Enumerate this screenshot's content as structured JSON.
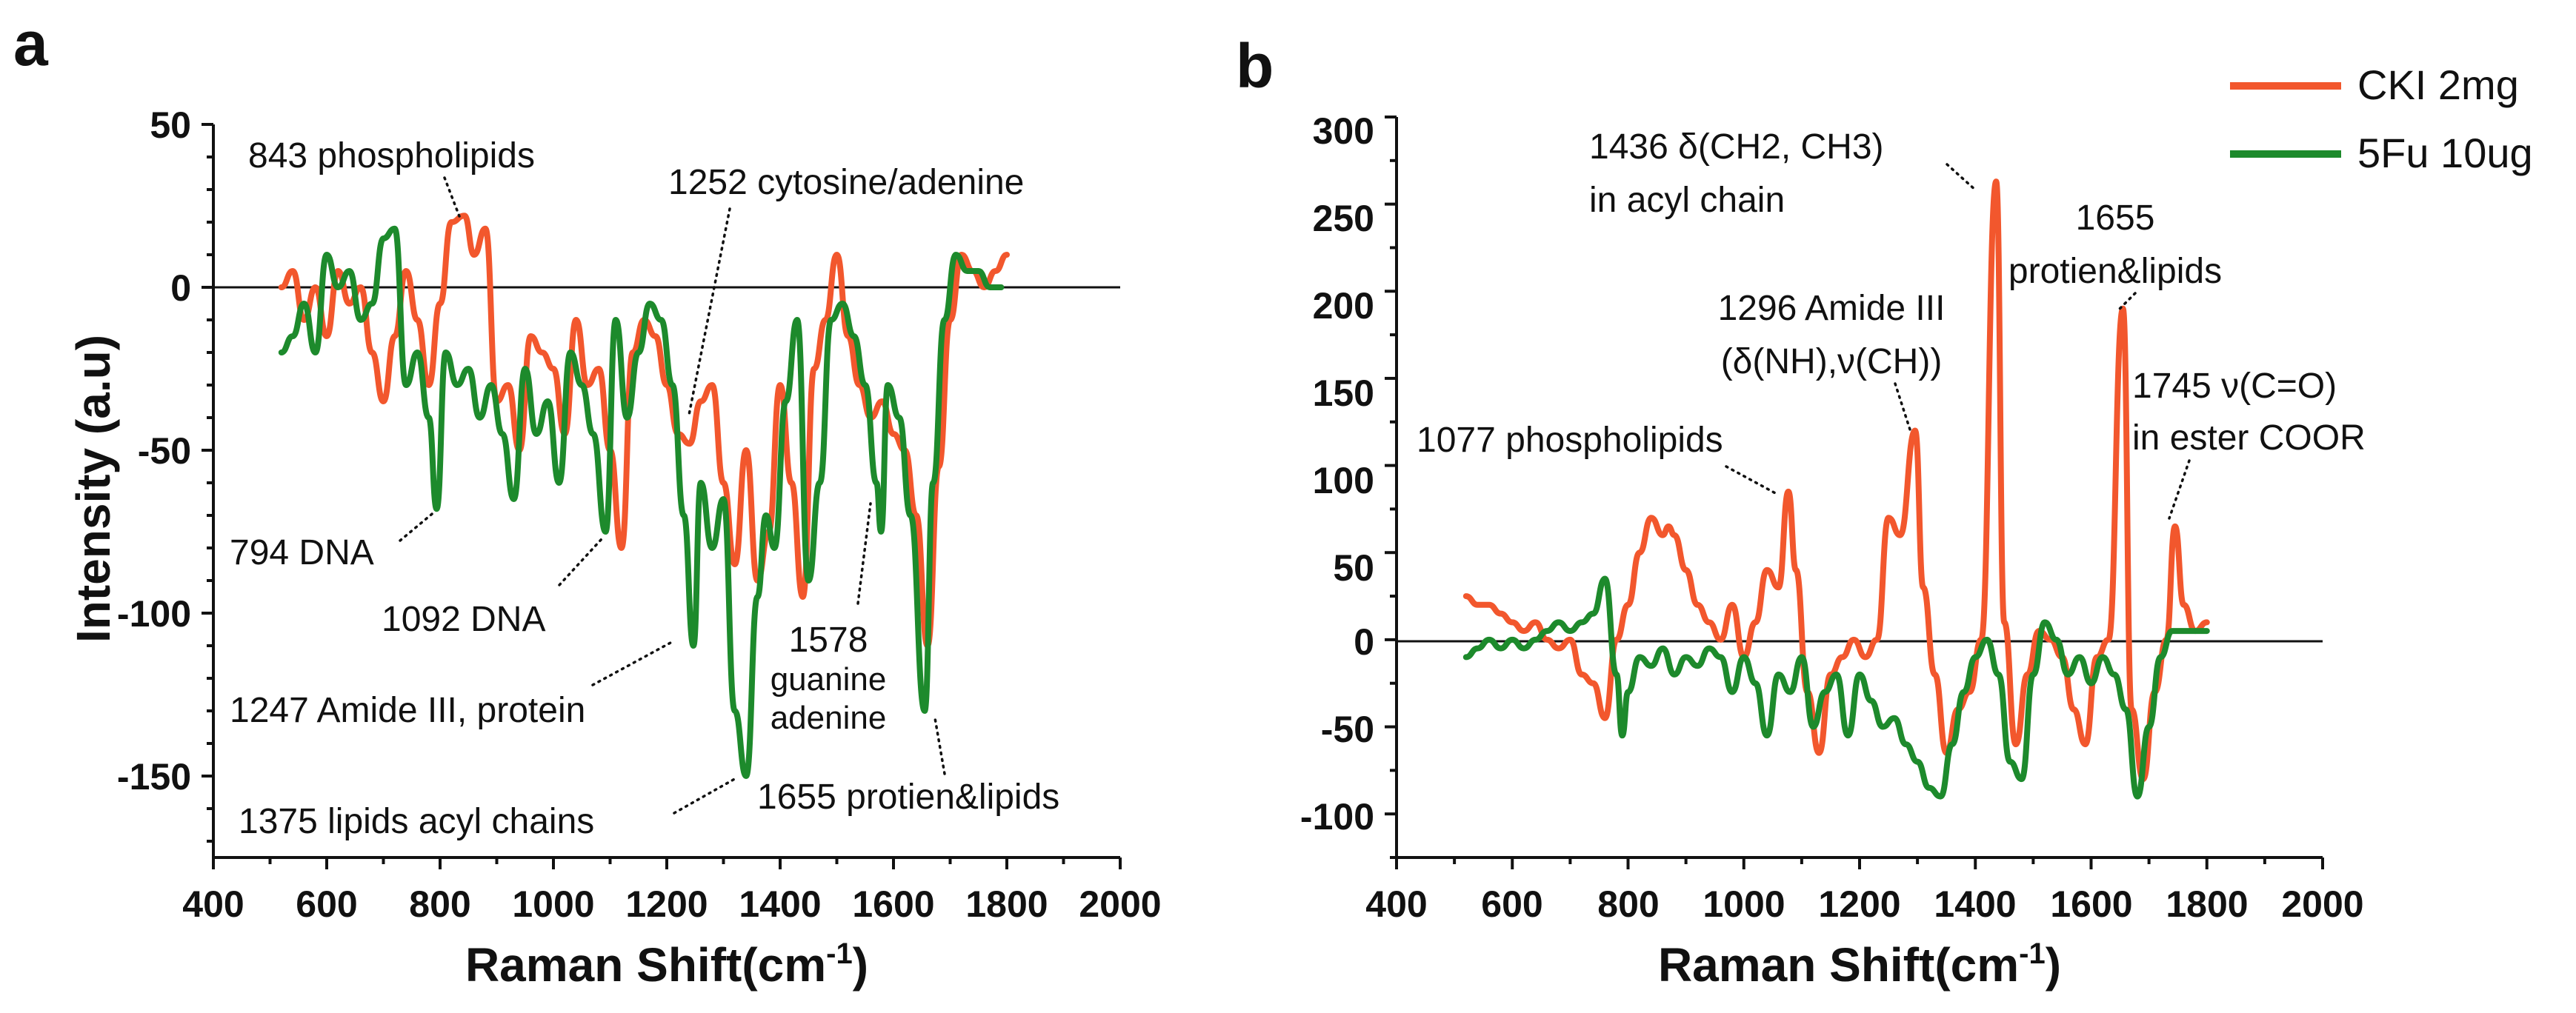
{
  "colors": {
    "cki": "#F2572D",
    "fu": "#1D8A2C",
    "axis": "#111111"
  },
  "chart_data": [
    {
      "type": "line",
      "panel_label": "a",
      "xlabel": "Raman Shift(cm",
      "xlabel_sup": "-1",
      "xlabel_close": ")",
      "ylabel": "Intensity (a.u)",
      "xlim": [
        400,
        2000
      ],
      "ylim": [
        -175,
        50
      ],
      "xticks": [
        400,
        600,
        800,
        1000,
        1200,
        1400,
        1600,
        1800,
        2000
      ],
      "yticks": [
        50,
        0,
        -50,
        -100,
        -150
      ],
      "ytick_labels": [
        "50",
        "0",
        "-50",
        "-100",
        "-150"
      ],
      "zero_line": true,
      "series": [
        {
          "name": "CKI 2mg",
          "color_key": "cki",
          "x": [
            520,
            540,
            560,
            580,
            600,
            620,
            640,
            660,
            680,
            700,
            720,
            740,
            760,
            780,
            800,
            820,
            843,
            860,
            880,
            900,
            920,
            940,
            960,
            980,
            1000,
            1020,
            1040,
            1060,
            1080,
            1100,
            1120,
            1140,
            1160,
            1180,
            1200,
            1220,
            1240,
            1260,
            1280,
            1300,
            1320,
            1340,
            1360,
            1380,
            1400,
            1420,
            1440,
            1460,
            1480,
            1500,
            1520,
            1540,
            1560,
            1580,
            1600,
            1620,
            1640,
            1660,
            1680,
            1700,
            1720,
            1740,
            1760,
            1780,
            1800
          ],
          "values": [
            0,
            5,
            -10,
            0,
            -15,
            5,
            -5,
            0,
            -20,
            -35,
            -15,
            5,
            -10,
            -30,
            -5,
            20,
            22,
            10,
            18,
            -35,
            -30,
            -50,
            -15,
            -20,
            -25,
            -45,
            -10,
            -30,
            -25,
            -50,
            -80,
            -20,
            -10,
            -15,
            -30,
            -45,
            -48,
            -35,
            -30,
            -60,
            -85,
            -50,
            -90,
            -75,
            -30,
            -60,
            -95,
            -25,
            -10,
            10,
            -15,
            -30,
            -40,
            -35,
            -45,
            -50,
            -70,
            -110,
            -55,
            -10,
            10,
            5,
            0,
            5,
            10
          ]
        },
        {
          "name": "5Fu 10ug",
          "color_key": "fu",
          "x": [
            520,
            540,
            560,
            580,
            600,
            620,
            640,
            660,
            680,
            700,
            720,
            740,
            760,
            780,
            794,
            810,
            830,
            850,
            870,
            890,
            910,
            930,
            950,
            970,
            990,
            1010,
            1030,
            1050,
            1070,
            1092,
            1110,
            1130,
            1150,
            1170,
            1190,
            1210,
            1230,
            1247,
            1260,
            1280,
            1300,
            1320,
            1340,
            1360,
            1375,
            1390,
            1410,
            1430,
            1450,
            1470,
            1490,
            1510,
            1530,
            1550,
            1570,
            1578,
            1590,
            1610,
            1630,
            1655,
            1670,
            1690,
            1710,
            1730,
            1750,
            1770,
            1790
          ],
          "values": [
            -20,
            -15,
            -5,
            -20,
            10,
            0,
            5,
            -10,
            -5,
            15,
            18,
            -30,
            -20,
            -40,
            -68,
            -20,
            -30,
            -25,
            -40,
            -30,
            -45,
            -65,
            -25,
            -45,
            -35,
            -60,
            -20,
            -30,
            -45,
            -75,
            -10,
            -40,
            -20,
            -5,
            -10,
            -30,
            -70,
            -110,
            -60,
            -80,
            -65,
            -130,
            -150,
            -95,
            -70,
            -80,
            -35,
            -10,
            -90,
            -60,
            -10,
            -5,
            -15,
            -30,
            -60,
            -75,
            -30,
            -40,
            -70,
            -130,
            -60,
            -10,
            10,
            5,
            5,
            0,
            0
          ]
        }
      ],
      "annotations": [
        {
          "id": "843",
          "lines": [
            "843 phospholipids"
          ],
          "x": 843,
          "y": 23
        },
        {
          "id": "1252",
          "lines": [
            "1252 cytosine/adenine"
          ],
          "x": 1252,
          "y": -45
        },
        {
          "id": "794",
          "lines": [
            "794 DNA"
          ],
          "x": 794,
          "y": -68
        },
        {
          "id": "1092",
          "lines": [
            "1092 DNA"
          ],
          "x": 1092,
          "y": -75
        },
        {
          "id": "1247",
          "lines": [
            "1247 Amide III, protein"
          ],
          "x": 1247,
          "y": -108
        },
        {
          "id": "1578",
          "lines": [
            "1578",
            "guanine",
            "adenine"
          ],
          "x": 1578,
          "y": -75
        },
        {
          "id": "1375",
          "lines": [
            "1375 lipids acyl chains"
          ],
          "x": 1375,
          "y": -148
        },
        {
          "id": "1655",
          "lines": [
            "1655 protien&lipids"
          ],
          "x": 1655,
          "y": -128
        }
      ]
    },
    {
      "type": "line",
      "panel_label": "b",
      "xlabel": "Raman Shift(cm",
      "xlabel_sup": "-1",
      "xlabel_close": ")",
      "ylabel": "",
      "xlim": [
        400,
        2000
      ],
      "ylim": [
        -125,
        300
      ],
      "xticks": [
        400,
        600,
        800,
        1000,
        1200,
        1400,
        1600,
        1800,
        2000
      ],
      "yticks": [
        300,
        250,
        200,
        150,
        100,
        50,
        0,
        -50,
        -100
      ],
      "ytick_labels": [
        "300",
        "250",
        "200",
        "150",
        "100",
        "50",
        "0",
        "-50",
        "-100"
      ],
      "zero_line": true,
      "legend": {
        "position": "top-right",
        "entries": [
          {
            "label": "CKI 2mg",
            "color_key": "cki"
          },
          {
            "label": "5Fu 10ug",
            "color_key": "fu"
          }
        ]
      },
      "series": [
        {
          "name": "CKI 2mg",
          "color_key": "cki",
          "x": [
            520,
            540,
            560,
            580,
            600,
            620,
            640,
            660,
            680,
            700,
            720,
            740,
            760,
            780,
            800,
            820,
            840,
            860,
            870,
            880,
            900,
            920,
            940,
            960,
            980,
            1000,
            1020,
            1040,
            1060,
            1077,
            1090,
            1110,
            1130,
            1150,
            1170,
            1190,
            1210,
            1230,
            1250,
            1270,
            1296,
            1310,
            1330,
            1350,
            1370,
            1390,
            1410,
            1436,
            1450,
            1470,
            1490,
            1510,
            1530,
            1550,
            1570,
            1590,
            1610,
            1630,
            1655,
            1670,
            1690,
            1710,
            1730,
            1745,
            1760,
            1780,
            1800
          ],
          "values": [
            25,
            20,
            20,
            15,
            10,
            5,
            10,
            0,
            -5,
            0,
            -20,
            -25,
            -45,
            0,
            20,
            50,
            70,
            60,
            65,
            60,
            40,
            20,
            10,
            0,
            20,
            -10,
            10,
            40,
            30,
            85,
            40,
            -30,
            -65,
            -20,
            -10,
            0,
            -10,
            0,
            70,
            60,
            120,
            30,
            -20,
            -65,
            -40,
            -30,
            0,
            263,
            10,
            -60,
            -20,
            5,
            0,
            -10,
            -40,
            -60,
            -10,
            0,
            190,
            -40,
            -80,
            -30,
            0,
            65,
            20,
            5,
            10
          ]
        },
        {
          "name": "5Fu 10ug",
          "color_key": "fu",
          "x": [
            520,
            540,
            560,
            580,
            600,
            620,
            640,
            660,
            680,
            700,
            720,
            740,
            760,
            780,
            790,
            800,
            820,
            840,
            860,
            880,
            900,
            920,
            940,
            960,
            980,
            1000,
            1020,
            1040,
            1060,
            1080,
            1100,
            1120,
            1140,
            1160,
            1180,
            1200,
            1220,
            1240,
            1260,
            1280,
            1300,
            1320,
            1340,
            1360,
            1380,
            1400,
            1420,
            1440,
            1460,
            1480,
            1500,
            1520,
            1540,
            1560,
            1580,
            1600,
            1620,
            1640,
            1660,
            1680,
            1700,
            1720,
            1740,
            1760,
            1780,
            1800
          ],
          "values": [
            -10,
            -5,
            0,
            -5,
            0,
            -5,
            0,
            5,
            10,
            5,
            10,
            15,
            35,
            -20,
            -55,
            -30,
            -10,
            -15,
            -5,
            -20,
            -10,
            -15,
            -5,
            -10,
            -30,
            -10,
            -25,
            -55,
            -20,
            -30,
            -10,
            -50,
            -30,
            -20,
            -55,
            -20,
            -35,
            -50,
            -45,
            -60,
            -70,
            -85,
            -90,
            -60,
            -30,
            -10,
            0,
            -20,
            -70,
            -80,
            -20,
            10,
            0,
            -20,
            -10,
            -25,
            -10,
            -20,
            -40,
            -90,
            -50,
            -10,
            5,
            5,
            5,
            5
          ]
        }
      ],
      "annotations": [
        {
          "id": "1436",
          "lines": [
            "1436 δ(CH2, CH3)",
            "in acyl chain"
          ],
          "x": 1436,
          "y": 263
        },
        {
          "id": "1655b",
          "lines": [
            "1655",
            "protien&lipids"
          ],
          "x": 1655,
          "y": 190
        },
        {
          "id": "1296",
          "lines": [
            "1296 Amide III",
            "(δ(NH),ν(CH))"
          ],
          "x": 1296,
          "y": 120
        },
        {
          "id": "1745",
          "lines": [
            "1745 ν(C=O)",
            "in ester COOR"
          ],
          "x": 1745,
          "y": 65
        },
        {
          "id": "1077",
          "lines": [
            "1077 phospholipids"
          ],
          "x": 1077,
          "y": 85
        }
      ]
    }
  ]
}
